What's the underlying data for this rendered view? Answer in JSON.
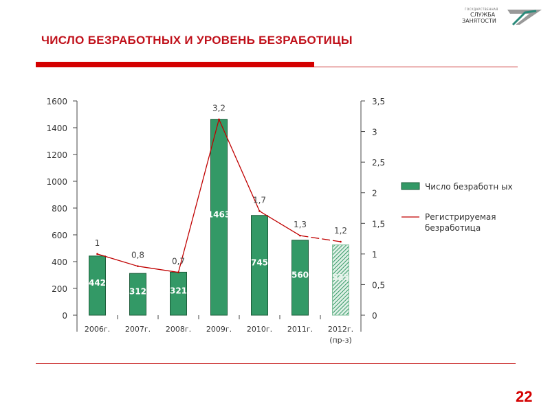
{
  "header": {
    "title": "ЧИСЛО БЕЗРАБОТНЫХ И УРОВЕНЬ БЕЗРАБОТИЦЫ",
    "logo_line1": "ГОСУДАРСТВЕННАЯ",
    "logo_line2": "СЛУЖБА",
    "logo_line3": "ЗАНЯТОСТИ"
  },
  "page_number": "22",
  "colors": {
    "accent": "#d40000",
    "bar": "#339966",
    "line": "#c00000"
  },
  "chart_data": {
    "type": "bar",
    "categories": [
      "2006г.",
      "2007г.",
      "2008г.",
      "2009г.",
      "2010г.",
      "2011г.",
      "2012г."
    ],
    "category_sublabels": [
      "",
      "",
      "",
      "",
      "",
      "",
      "(пр-з)"
    ],
    "series": [
      {
        "name": "Число безработных",
        "axis": "left",
        "type": "bar",
        "values": [
          442,
          312,
          321,
          1463,
          745,
          560,
          525
        ],
        "labels": [
          "442",
          "312",
          "321",
          "1463",
          "745",
          "560",
          "525"
        ],
        "forecast_index": 6
      },
      {
        "name": "Регистрируемая безработица",
        "axis": "right",
        "type": "line",
        "values": [
          1,
          0.8,
          0.7,
          3.2,
          1.7,
          1.3,
          1.2
        ],
        "labels": [
          "1",
          "0,8",
          "0,7",
          "3,2",
          "1,7",
          "1,3",
          "1,2"
        ]
      }
    ],
    "left_axis": {
      "ylim": [
        0,
        1600
      ],
      "ticks": [
        "0",
        "200",
        "400",
        "600",
        "800",
        "1000",
        "1200",
        "1400",
        "1600"
      ]
    },
    "right_axis": {
      "ylim": [
        0,
        3.5
      ],
      "ticks": [
        "0",
        "0,5",
        "1",
        "1,5",
        "2",
        "2,5",
        "3",
        "3,5"
      ]
    },
    "legend": {
      "position": "right",
      "items": [
        "Число безработн ых",
        "Регистрируемая безработица"
      ]
    }
  }
}
